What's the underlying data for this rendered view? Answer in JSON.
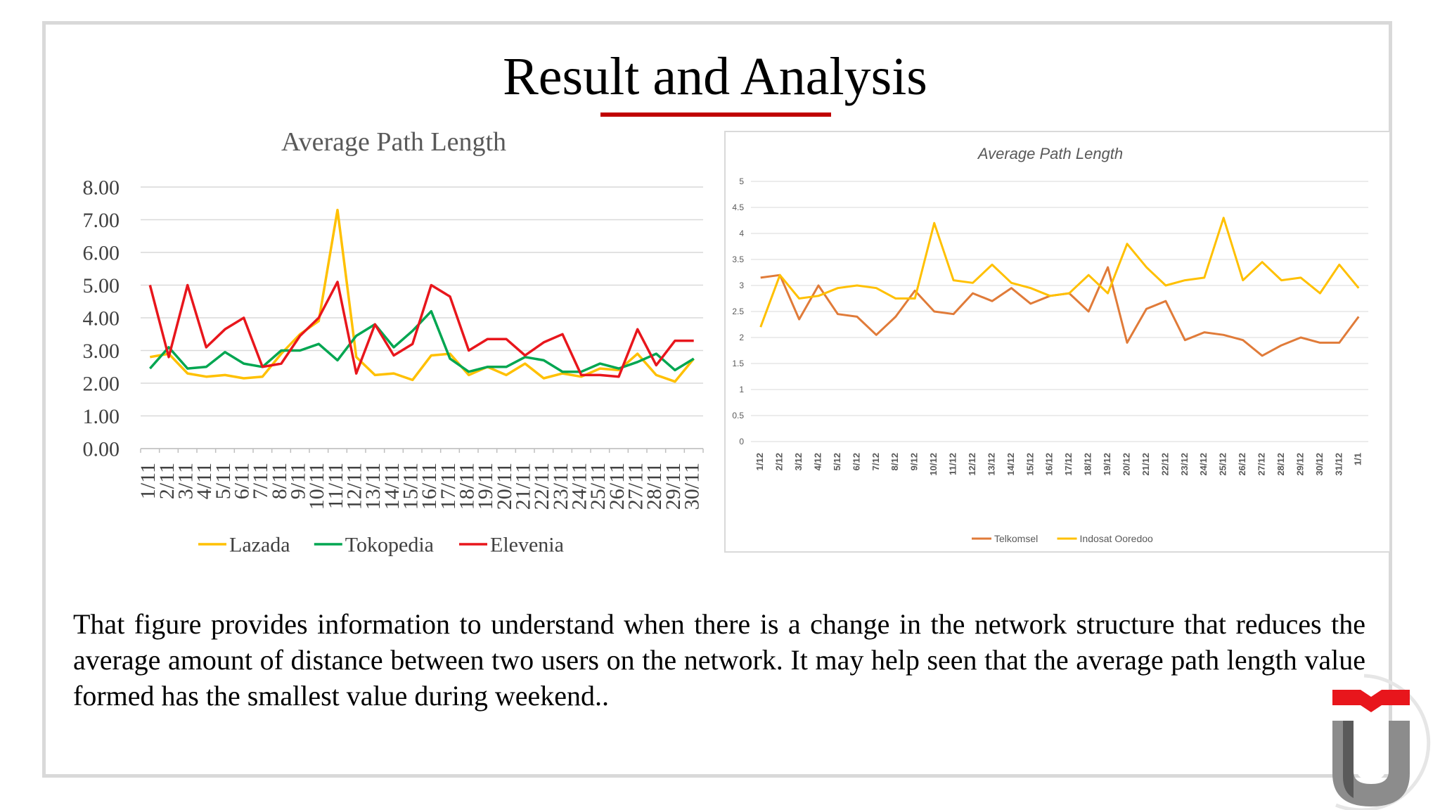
{
  "slide": {
    "title": "Result and Analysis",
    "body": "That figure provides information to understand when there is a change in the network structure that reduces the average amount of distance between two users on the network. It may help seen that the average path length value formed has the smallest value during weekend.."
  },
  "colors": {
    "accent": "#c00000",
    "lazada": "#ffc000",
    "tokopedia": "#00a651",
    "elevenia": "#e8161c",
    "telkomsel": "#e07b39",
    "indosat": "#ffc000"
  },
  "chart_data": [
    {
      "type": "line",
      "title": "Average Path Length",
      "ylim": [
        0,
        8
      ],
      "yticks": [
        "0.00",
        "1.00",
        "2.00",
        "3.00",
        "4.00",
        "5.00",
        "6.00",
        "7.00",
        "8.00"
      ],
      "grid": true,
      "legend": "bottom",
      "categories": [
        "1/11",
        "2/11",
        "3/11",
        "4/11",
        "5/11",
        "6/11",
        "7/11",
        "8/11",
        "9/11",
        "10/11",
        "11/11",
        "12/11",
        "13/11",
        "14/11",
        "15/11",
        "16/11",
        "17/11",
        "18/11",
        "19/11",
        "20/11",
        "21/11",
        "22/11",
        "23/11",
        "24/11",
        "25/11",
        "26/11",
        "27/11",
        "28/11",
        "29/11",
        "30/11"
      ],
      "series": [
        {
          "name": "Lazada",
          "values": [
            2.8,
            2.9,
            2.3,
            2.2,
            2.25,
            2.15,
            2.2,
            2.9,
            3.5,
            3.9,
            7.3,
            2.8,
            2.25,
            2.3,
            2.1,
            2.85,
            2.9,
            2.25,
            2.5,
            2.25,
            2.6,
            2.15,
            2.3,
            2.2,
            2.45,
            2.4,
            2.9,
            2.25,
            2.05,
            2.75
          ]
        },
        {
          "name": "Tokopedia",
          "values": [
            2.45,
            3.1,
            2.45,
            2.5,
            2.95,
            2.6,
            2.5,
            3.0,
            3.0,
            3.2,
            2.7,
            3.45,
            3.8,
            3.1,
            3.6,
            4.2,
            2.75,
            2.35,
            2.5,
            2.5,
            2.8,
            2.7,
            2.35,
            2.35,
            2.6,
            2.45,
            2.65,
            2.9,
            2.4,
            2.75
          ]
        },
        {
          "name": "Elevenia",
          "values": [
            5.0,
            2.8,
            5.0,
            3.1,
            3.65,
            4.0,
            2.5,
            2.6,
            3.45,
            4.0,
            5.1,
            2.3,
            3.8,
            2.85,
            3.2,
            5.0,
            4.65,
            3.0,
            3.35,
            3.35,
            2.85,
            3.25,
            3.5,
            2.25,
            2.25,
            2.2,
            3.65,
            2.55,
            3.3,
            3.3
          ]
        }
      ]
    },
    {
      "type": "line",
      "title": "Average Path Length",
      "ylim": [
        0,
        5
      ],
      "yticks": [
        "0",
        "0.5",
        "1",
        "1.5",
        "2",
        "2.5",
        "3",
        "3.5",
        "4",
        "4.5",
        "5"
      ],
      "grid": true,
      "legend": "bottom",
      "categories": [
        "1/12",
        "2/12",
        "3/12",
        "4/12",
        "5/12",
        "6/12",
        "7/12",
        "8/12",
        "9/12",
        "10/12",
        "11/12",
        "12/12",
        "13/12",
        "14/12",
        "15/12",
        "16/12",
        "17/12",
        "18/12",
        "19/12",
        "20/12",
        "21/12",
        "22/12",
        "23/12",
        "24/12",
        "25/12",
        "26/12",
        "27/12",
        "28/12",
        "29/12",
        "30/12",
        "31/12",
        "1/1"
      ],
      "series": [
        {
          "name": "Telkomsel",
          "values": [
            3.15,
            3.2,
            2.35,
            3.0,
            2.45,
            2.4,
            2.05,
            2.4,
            2.9,
            2.5,
            2.45,
            2.85,
            2.7,
            2.95,
            2.65,
            2.8,
            2.85,
            2.5,
            3.35,
            1.9,
            2.55,
            2.7,
            1.95,
            2.1,
            2.05,
            1.95,
            1.65,
            1.85,
            2.0,
            1.9,
            1.9,
            2.4
          ]
        },
        {
          "name": "Indosat Ooredoo",
          "values": [
            2.2,
            3.2,
            2.75,
            2.8,
            2.95,
            3.0,
            2.95,
            2.75,
            2.75,
            4.2,
            3.1,
            3.05,
            3.4,
            3.05,
            2.95,
            2.8,
            2.85,
            3.2,
            2.85,
            3.8,
            3.35,
            3.0,
            3.1,
            3.15,
            4.3,
            3.1,
            3.45,
            3.1,
            3.15,
            2.85,
            3.4,
            2.95
          ]
        }
      ]
    }
  ]
}
